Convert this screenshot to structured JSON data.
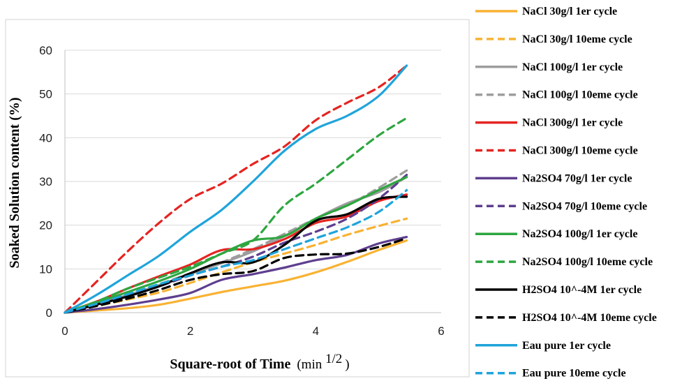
{
  "chart_data": {
    "type": "line",
    "title": "",
    "xlabel_bold": "Square-root of Time",
    "xlabel_unit": "(min ",
    "xlabel_sup": "1/2",
    "xlabel_close": ")",
    "ylabel": "Soaked Solution content (%)",
    "xlim": [
      0,
      6
    ],
    "ylim": [
      0,
      60
    ],
    "xticks": [
      "0",
      "2",
      "4",
      "6"
    ],
    "yticks": [
      "0",
      "10",
      "20",
      "30",
      "40",
      "50",
      "60"
    ],
    "grid": "horizontal",
    "legend_position": "right",
    "series": [
      {
        "name": "NaCl 30g/l 1er cycle",
        "color": "#F9B233",
        "dash": false,
        "x": [
          0,
          0.5,
          1,
          1.5,
          2,
          2.5,
          3,
          3.5,
          4,
          4.5,
          5,
          5.45
        ],
        "y": [
          0,
          0.5,
          1,
          1.8,
          3.2,
          4.7,
          6,
          7.3,
          9.2,
          11.6,
          14.3,
          16.5
        ]
      },
      {
        "name": "NaCl 30g/l 10eme cycle",
        "color": "#F9B233",
        "dash": true,
        "x": [
          0,
          0.5,
          1,
          1.5,
          2,
          2.5,
          3,
          3.5,
          4,
          4.5,
          5,
          5.45
        ],
        "y": [
          0,
          1.5,
          3,
          4.6,
          6.8,
          9.2,
          11.5,
          13.5,
          15.5,
          17.8,
          19.8,
          21.5
        ]
      },
      {
        "name": "NaCl 100g/l 1er cycle",
        "color": "#9D9D9D",
        "dash": false,
        "x": [
          0,
          0.5,
          1,
          1.5,
          2,
          2.5,
          3,
          3.5,
          4,
          4.5,
          5,
          5.45
        ],
        "y": [
          0,
          2,
          4,
          6.3,
          8.8,
          11.3,
          14,
          17.5,
          21.5,
          25,
          27.5,
          31
        ]
      },
      {
        "name": "NaCl 100g/l 10eme cycle",
        "color": "#9D9D9D",
        "dash": true,
        "x": [
          0,
          0.5,
          1,
          1.5,
          2,
          2.5,
          3,
          3.5,
          4,
          4.5,
          5,
          5.45
        ],
        "y": [
          0,
          2,
          4.2,
          6.5,
          9,
          11.5,
          14.5,
          18,
          21.5,
          24.5,
          28.5,
          32.5
        ]
      },
      {
        "name": "NaCl 300g/l 1er cycle",
        "color": "#E52421",
        "dash": false,
        "x": [
          0,
          0.5,
          1,
          1.5,
          2,
          2.5,
          3,
          3.5,
          4,
          4.5,
          5,
          5.45
        ],
        "y": [
          0,
          2.5,
          5.5,
          8.3,
          11,
          14.3,
          14.5,
          16.8,
          20.5,
          22,
          25.5,
          27
        ]
      },
      {
        "name": "NaCl 300g/l 10eme cycle",
        "color": "#E52421",
        "dash": true,
        "x": [
          0,
          0.5,
          1,
          1.5,
          2,
          2.5,
          3,
          3.5,
          4,
          4.5,
          5,
          5.45
        ],
        "y": [
          0,
          7,
          14,
          20.5,
          26,
          29.5,
          34,
          38,
          44,
          48,
          51.5,
          56.5
        ]
      },
      {
        "name": "Na2SO4 70g/l 1er cycle",
        "color": "#5E3E8F",
        "dash": false,
        "x": [
          0,
          0.5,
          1,
          1.5,
          2,
          2.5,
          3,
          3.5,
          4,
          4.5,
          5,
          5.45
        ],
        "y": [
          0,
          0.8,
          1.8,
          3,
          4.5,
          7.5,
          8.8,
          10.3,
          12,
          13.2,
          15.8,
          17.3
        ]
      },
      {
        "name": "Na2SO4 70g/l 10eme cycle",
        "color": "#5E3E8F",
        "dash": true,
        "x": [
          0,
          0.5,
          1,
          1.5,
          2,
          2.5,
          3,
          3.5,
          4,
          4.5,
          5,
          5.45
        ],
        "y": [
          0,
          2,
          4,
          6,
          8.5,
          10.5,
          12.8,
          16,
          18.5,
          21.5,
          26,
          31.5
        ]
      },
      {
        "name": "Na2SO4 100g/l 1er cycle",
        "color": "#2EA640",
        "dash": false,
        "x": [
          0,
          0.5,
          1,
          1.5,
          2,
          2.5,
          3,
          3.5,
          4,
          4.5,
          5,
          5.45
        ],
        "y": [
          0,
          2.3,
          4.7,
          7.2,
          10,
          13.5,
          16.5,
          17.5,
          21.5,
          24.5,
          28,
          31
        ]
      },
      {
        "name": "Na2SO4 100g/l 10eme cycle",
        "color": "#2EA640",
        "dash": true,
        "x": [
          0,
          0.5,
          1,
          1.5,
          2,
          2.5,
          3,
          3.5,
          4,
          4.5,
          5,
          5.45
        ],
        "y": [
          0,
          2.5,
          5.5,
          8,
          10.5,
          13.5,
          16.5,
          24.5,
          29.5,
          35,
          40.5,
          44.5
        ]
      },
      {
        "name": "H2SO4 10^-4M 1er cycle",
        "color": "#000000",
        "dash": false,
        "x": [
          0,
          0.5,
          1,
          1.5,
          2,
          2.5,
          3,
          3.5,
          4,
          4.5,
          5,
          5.45
        ],
        "y": [
          0,
          1.8,
          3.7,
          6,
          9,
          11.5,
          11.5,
          15.5,
          21,
          22.5,
          26,
          26.5
        ]
      },
      {
        "name": "H2SO4 10^-4M 10eme cycle",
        "color": "#000000",
        "dash": true,
        "x": [
          0,
          0.5,
          1,
          1.5,
          2,
          2.5,
          3,
          3.5,
          4,
          4.5,
          5,
          5.45
        ],
        "y": [
          0,
          1.5,
          3.2,
          5.2,
          7.5,
          8.8,
          9.5,
          12.5,
          13.3,
          13.5,
          15,
          17
        ]
      },
      {
        "name": "Eau pure 1er cycle",
        "color": "#1FA4DB",
        "dash": false,
        "x": [
          0,
          0.5,
          1,
          1.5,
          2,
          2.5,
          3,
          3.5,
          4,
          4.5,
          5,
          5.45
        ],
        "y": [
          0,
          4,
          8.5,
          13,
          18.5,
          23.5,
          30,
          37,
          42,
          45,
          49.5,
          56.5
        ]
      },
      {
        "name": "Eau pure 10eme cycle",
        "color": "#1FA4DB",
        "dash": true,
        "x": [
          0,
          0.5,
          1,
          1.5,
          2,
          2.5,
          3,
          3.5,
          4,
          4.5,
          5,
          5.45
        ],
        "y": [
          0,
          2,
          4.2,
          6.5,
          8.5,
          10.5,
          12,
          14.5,
          17,
          19.5,
          23,
          28
        ]
      }
    ]
  }
}
